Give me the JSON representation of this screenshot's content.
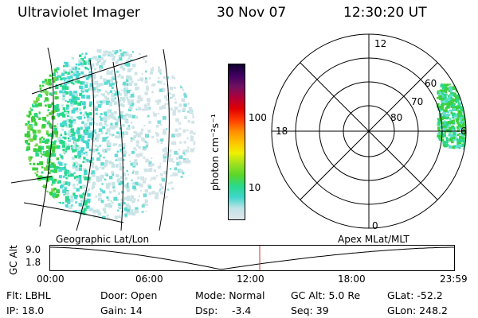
{
  "header": {
    "title": "Ultraviolet Imager",
    "date": "30 Nov 07",
    "time": "12:30:20 UT"
  },
  "colorbar": {
    "label": "photon cm⁻²s⁻¹",
    "ticks": [
      "100",
      "10"
    ],
    "stops": [
      "#dfe6ea",
      "#bfe3e6",
      "#3fd6cc",
      "#2ad88c",
      "#5ad62a",
      "#9ee020",
      "#f0f000",
      "#ffc000",
      "#ff8a00",
      "#ff3a00",
      "#e00000",
      "#b0003a",
      "#701060",
      "#400060",
      "#100030"
    ]
  },
  "left_panel": {
    "caption": "Geographic Lat/Lon"
  },
  "polar_plot": {
    "caption": "Apex MLat/MLT",
    "lat_labels": [
      "60",
      "70",
      "80"
    ],
    "mlt_labels": {
      "top": "12",
      "left": "18",
      "right": "6",
      "bottom": "0"
    }
  },
  "timeline": {
    "ylabel": "GC Alt",
    "ticks_y": [
      "9.0",
      "1.8"
    ],
    "ticks_x": [
      "00:00",
      "06:00",
      "12:00",
      "18:00",
      "23:59"
    ],
    "marker_color": "#d03030"
  },
  "info": {
    "flt": "Flt: LBHL",
    "door": "Door: Open",
    "mode": "Mode: Normal",
    "gcalt": "GC Alt: 5.0 Re",
    "glat": "GLat: -52.2",
    "ip": "IP: 18.0",
    "gain": "Gain: 14",
    "dsp": "Dsp:",
    "dsp_val": "-3.4",
    "seq": "Seq: 39",
    "glon": "GLon: 248.2"
  }
}
